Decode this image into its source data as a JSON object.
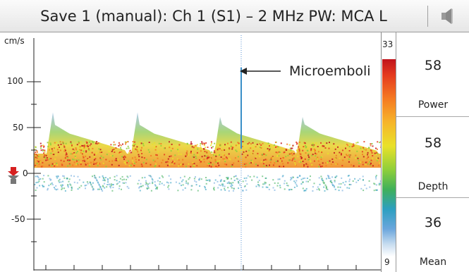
{
  "header": {
    "title": "Save 1 (manual): Ch 1 (S1) – 2 MHz PW: MCA L",
    "audio_icon": "speaker-icon"
  },
  "spectrum": {
    "unit": "cm/s",
    "y_ticks": [
      "100",
      "50",
      "0",
      "-50"
    ],
    "annotation": "Microemboli",
    "baseline_marker_icon": "baseline-arrow-icon"
  },
  "colorbar": {
    "top_label": "33",
    "bottom_label": "9",
    "colors": [
      "#c0141c",
      "#f57a22",
      "#e9e12a",
      "#3fb05a",
      "#2d9fc0",
      "#c9def0",
      "#ffffff"
    ]
  },
  "readouts": [
    {
      "value": "58",
      "label": "Power"
    },
    {
      "value": "58",
      "label": "Depth"
    },
    {
      "value": "36",
      "label": "Mean"
    }
  ]
}
